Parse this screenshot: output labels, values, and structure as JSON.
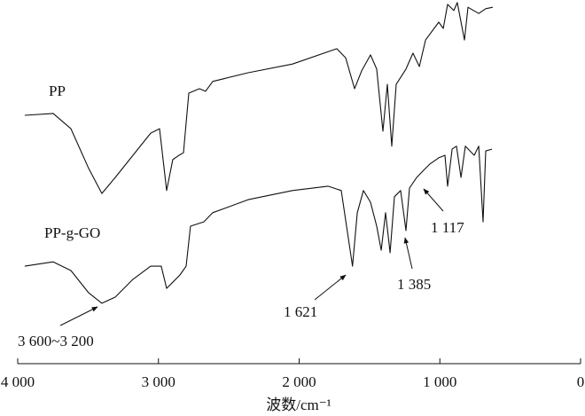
{
  "chart_data": {
    "type": "line",
    "x_label": "波数/cm⁻¹",
    "xlim": [
      4000,
      0
    ],
    "xticks": [
      {
        "value": 4000,
        "label": "4 000"
      },
      {
        "value": 3000,
        "label": "3 000"
      },
      {
        "value": 2000,
        "label": "2 000"
      },
      {
        "value": 1000,
        "label": "1 000"
      },
      0
    ],
    "ylim": [
      0,
      100
    ],
    "series": [
      {
        "name": "PP",
        "color": "#111111",
        "x": [
          3950,
          3748,
          3622,
          3496,
          3402,
          3307,
          3181,
          3055,
          2992,
          2942,
          2898,
          2854,
          2822,
          2784,
          2709,
          2665,
          2614,
          2362,
          2047,
          1732,
          1669,
          1606,
          1556,
          1493,
          1449,
          1405,
          1373,
          1342,
          1310,
          1241,
          1191,
          1146,
          1102,
          1008,
          976,
          945,
          901,
          876,
          825,
          800,
          724,
          674,
          624
        ],
        "values": [
          68.3,
          68.8,
          64.6,
          53.7,
          46.8,
          51.2,
          57.3,
          63.4,
          64.6,
          47.6,
          56.1,
          57.3,
          58.0,
          74.4,
          75.6,
          74.9,
          77.6,
          80.0,
          82.4,
          86.6,
          84.1,
          75.6,
          80.5,
          84.9,
          81.0,
          63.9,
          76.8,
          59.8,
          76.8,
          81.0,
          85.4,
          81.7,
          89.0,
          93.9,
          92.2,
          98.8,
          97.1,
          99.3,
          89.0,
          98.0,
          96.3,
          97.6,
          98.0
        ]
      },
      {
        "name": "PP-g-GO",
        "color": "#111111",
        "x": [
          3950,
          3748,
          3622,
          3496,
          3402,
          3307,
          3181,
          3055,
          2980,
          2942,
          2898,
          2847,
          2803,
          2772,
          2677,
          2614,
          2362,
          2047,
          1795,
          1701,
          1621,
          1587,
          1543,
          1493,
          1449,
          1417,
          1386,
          1354,
          1323,
          1279,
          1241,
          1216,
          1165,
          1115,
          1071,
          1008,
          964,
          945,
          913,
          882,
          850,
          819,
          756,
          724,
          693,
          674,
          630
        ],
        "values": [
          26.8,
          28.0,
          25.6,
          19.5,
          16.6,
          18.3,
          23.2,
          26.8,
          26.8,
          20.7,
          22.4,
          24.4,
          26.8,
          37.8,
          39.0,
          41.5,
          45.1,
          47.6,
          48.8,
          47.6,
          26.8,
          41.5,
          47.6,
          44.4,
          37.8,
          31.2,
          41.5,
          30.5,
          45.9,
          47.6,
          36.6,
          48.3,
          51.2,
          53.2,
          54.9,
          56.6,
          57.3,
          48.8,
          59.0,
          59.8,
          51.2,
          59.8,
          57.3,
          59.8,
          39.0,
          58.5,
          59.0
        ]
      }
    ],
    "annotations": [
      "3 600~3 200",
      "1 621",
      "1 385",
      "1 117"
    ]
  }
}
